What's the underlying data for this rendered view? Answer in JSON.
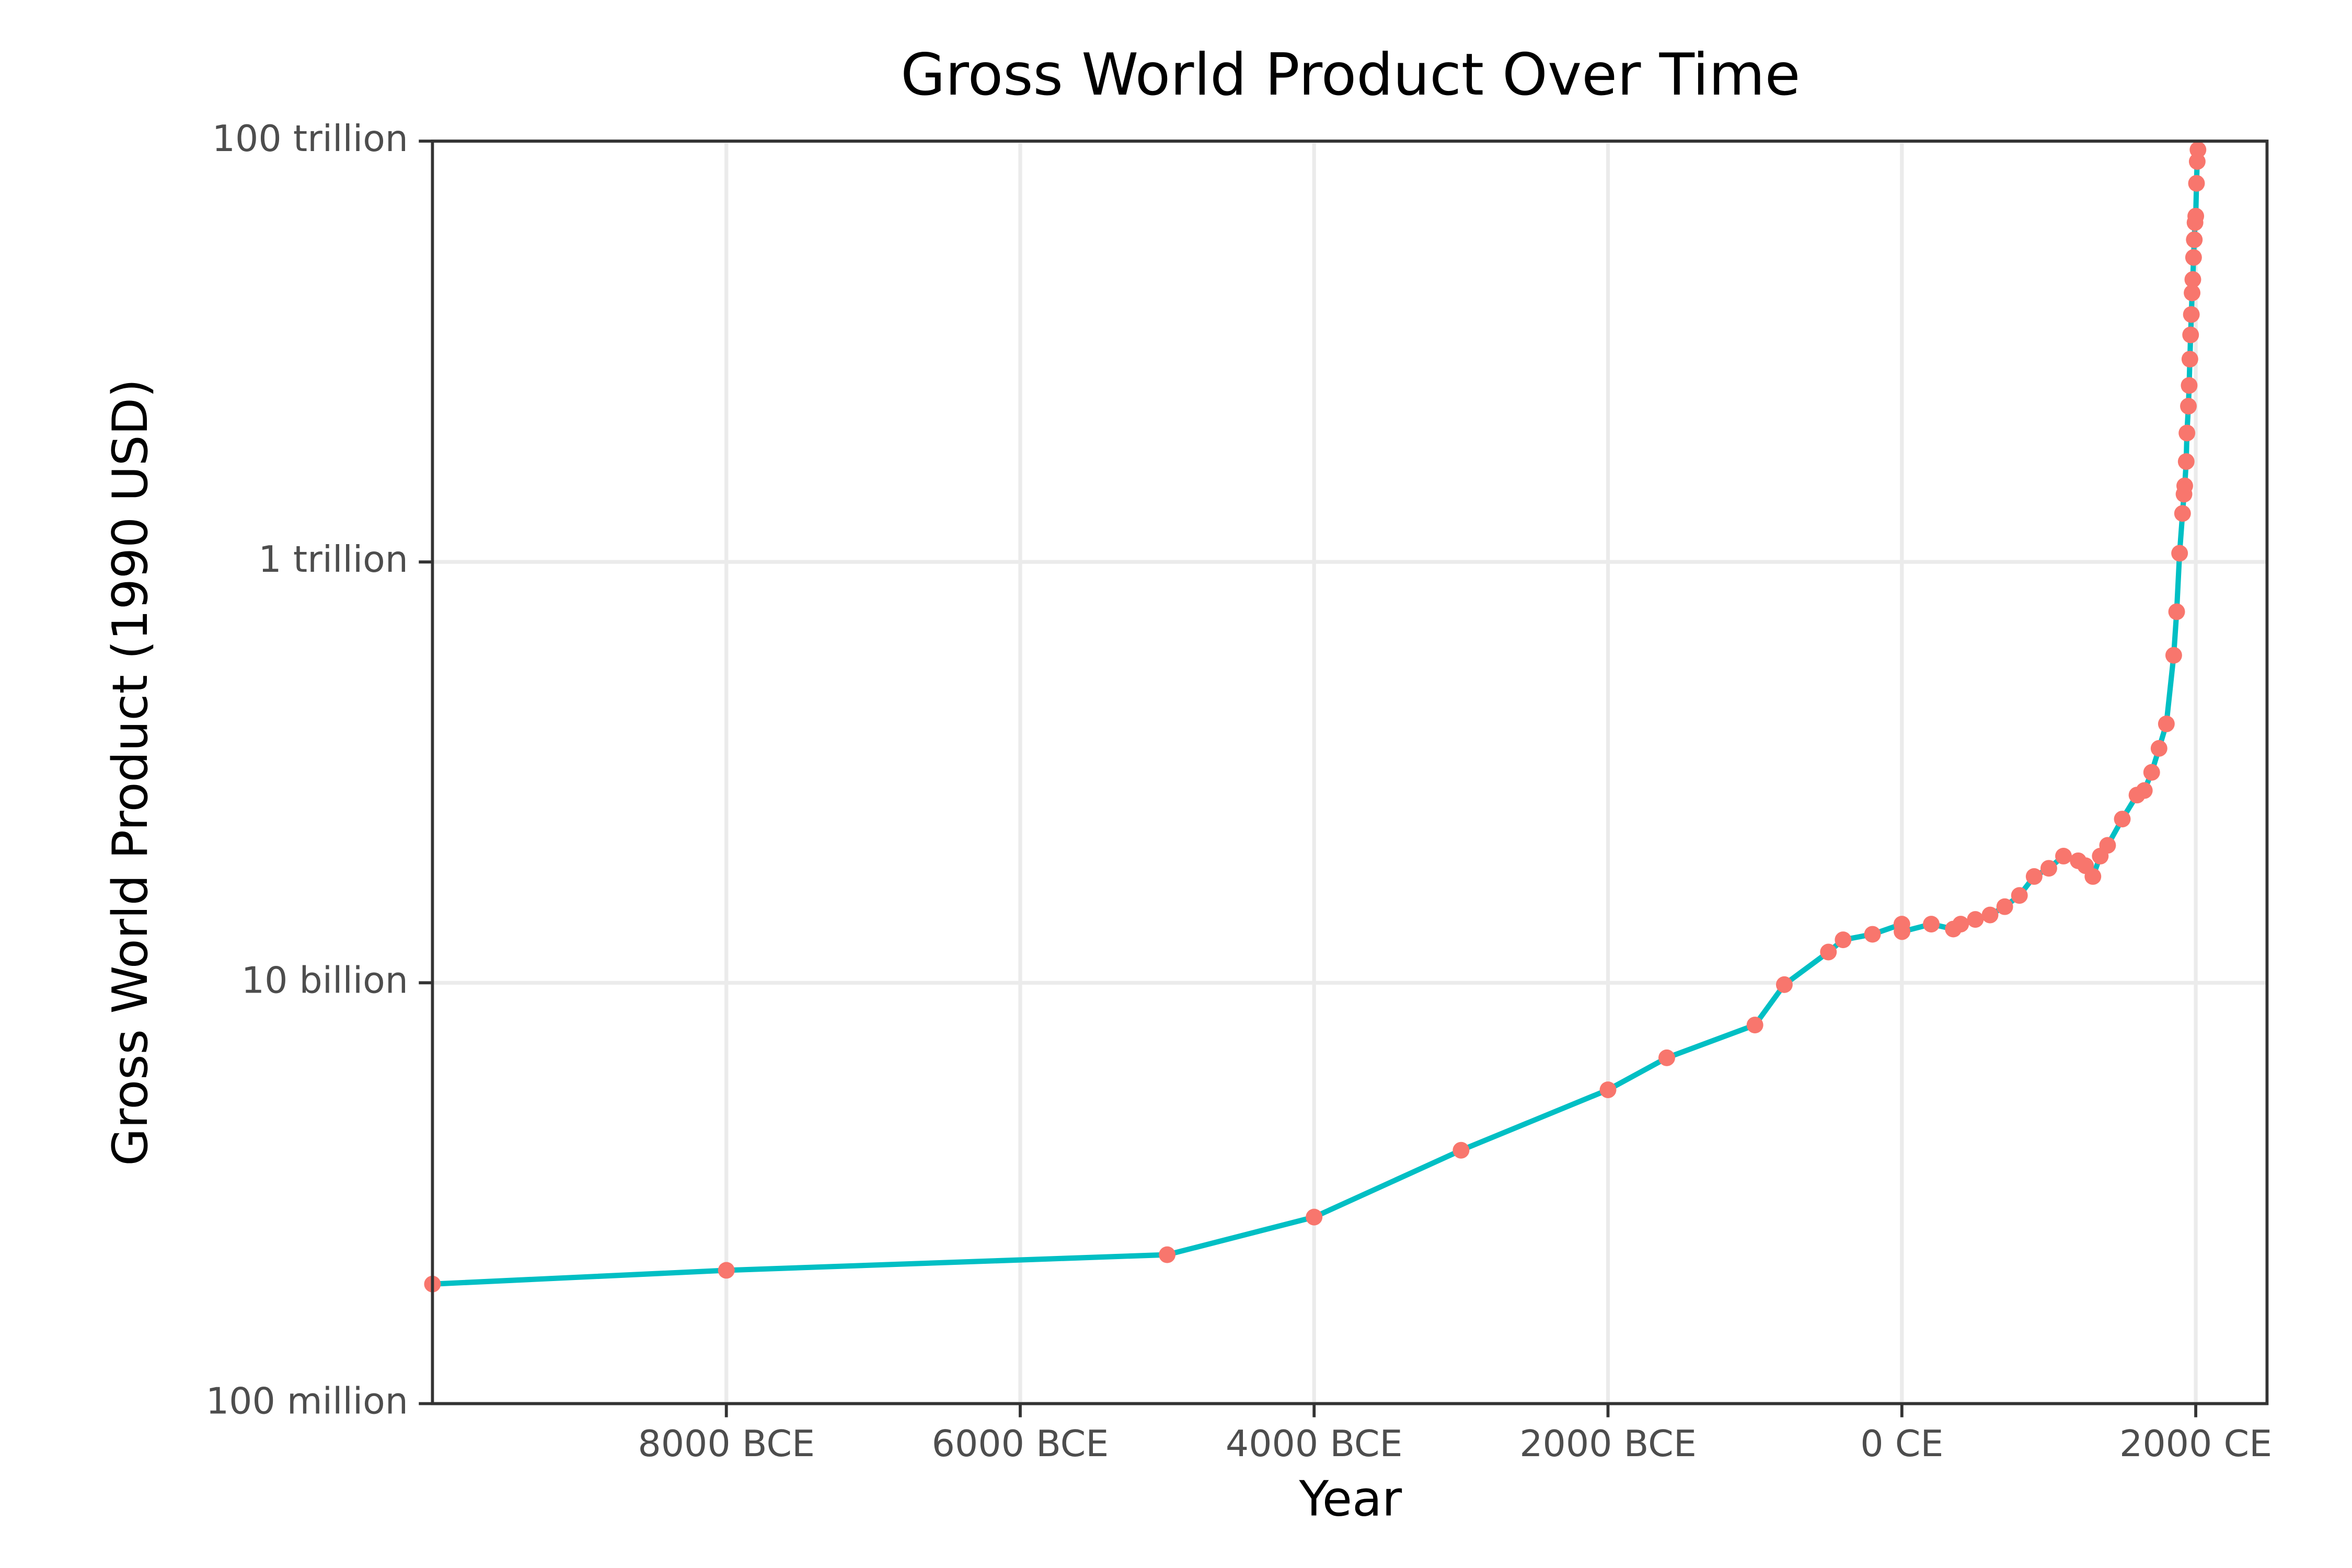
{
  "chart_data": {
    "type": "line",
    "title": "Gross World Product Over Time",
    "x_label": "Year",
    "y_label": "Gross World Product (1990 USD)",
    "x": [
      -10000,
      -8000,
      -5000,
      -4000,
      -3000,
      -2000,
      -1600,
      -1000,
      -800,
      -500,
      -400,
      -200,
      0,
      1,
      200,
      350,
      400,
      500,
      600,
      700,
      800,
      900,
      1000,
      1100,
      1200,
      1250,
      1300,
      1350,
      1400,
      1500,
      1600,
      1650,
      1700,
      1750,
      1800,
      1850,
      1870,
      1890,
      1910,
      1920,
      1925,
      1935,
      1940,
      1950,
      1955,
      1960,
      1965,
      1970,
      1975,
      1980,
      1985,
      1990,
      1995,
      2000,
      2005,
      2010,
      2015
    ],
    "values": [
      370000000,
      430000000,
      510000000,
      770000000,
      1600000000,
      3100000000,
      4400000000,
      6300000000,
      9800000000,
      14000000000,
      16000000000,
      17000000000,
      19000000000,
      17500000000,
      19000000000,
      18000000000,
      19000000000,
      20000000000,
      21000000000,
      23000000000,
      26000000000,
      32000000000,
      35000000000,
      40000000000,
      38000000000,
      36000000000,
      32000000000,
      40000000000,
      45000000000,
      60000000000,
      78000000000,
      82000000000,
      100000000000,
      130000000000,
      170000000000,
      360000000000,
      580000000000,
      1100000000000,
      1700000000000,
      2100000000000,
      2300000000000,
      3000000000000,
      4100000000000,
      5500000000000,
      6900000000000,
      9200000000000,
      12000000000000,
      15000000000000,
      19000000000000,
      22000000000000,
      28000000000000,
      34000000000000,
      41000000000000,
      44000000000000,
      63000000000000,
      80000000000000,
      91000000000000
    ],
    "line_color": "#00BFC4",
    "point_color": "#F8766D",
    "xlim": [
      -10000,
      2485
    ],
    "xticks": [
      {
        "value": -8000,
        "label": "8000 BCE"
      },
      {
        "value": -6000,
        "label": "6000 BCE"
      },
      {
        "value": -4000,
        "label": "4000 BCE"
      },
      {
        "value": -2000,
        "label": "2000 BCE"
      },
      {
        "value": 0,
        "label": "0 CE"
      },
      {
        "value": 2000,
        "label": "2000 CE"
      }
    ],
    "ylim": [
      100000000,
      100000000000000
    ],
    "y_log": true,
    "yticks": [
      {
        "value": 100000000,
        "label": "100 million"
      },
      {
        "value": 10000000000,
        "label": "10 billion"
      },
      {
        "value": 1000000000000,
        "label": "1 trillion"
      },
      {
        "value": 100000000000000,
        "label": "100 trillion"
      }
    ],
    "grid": true
  }
}
